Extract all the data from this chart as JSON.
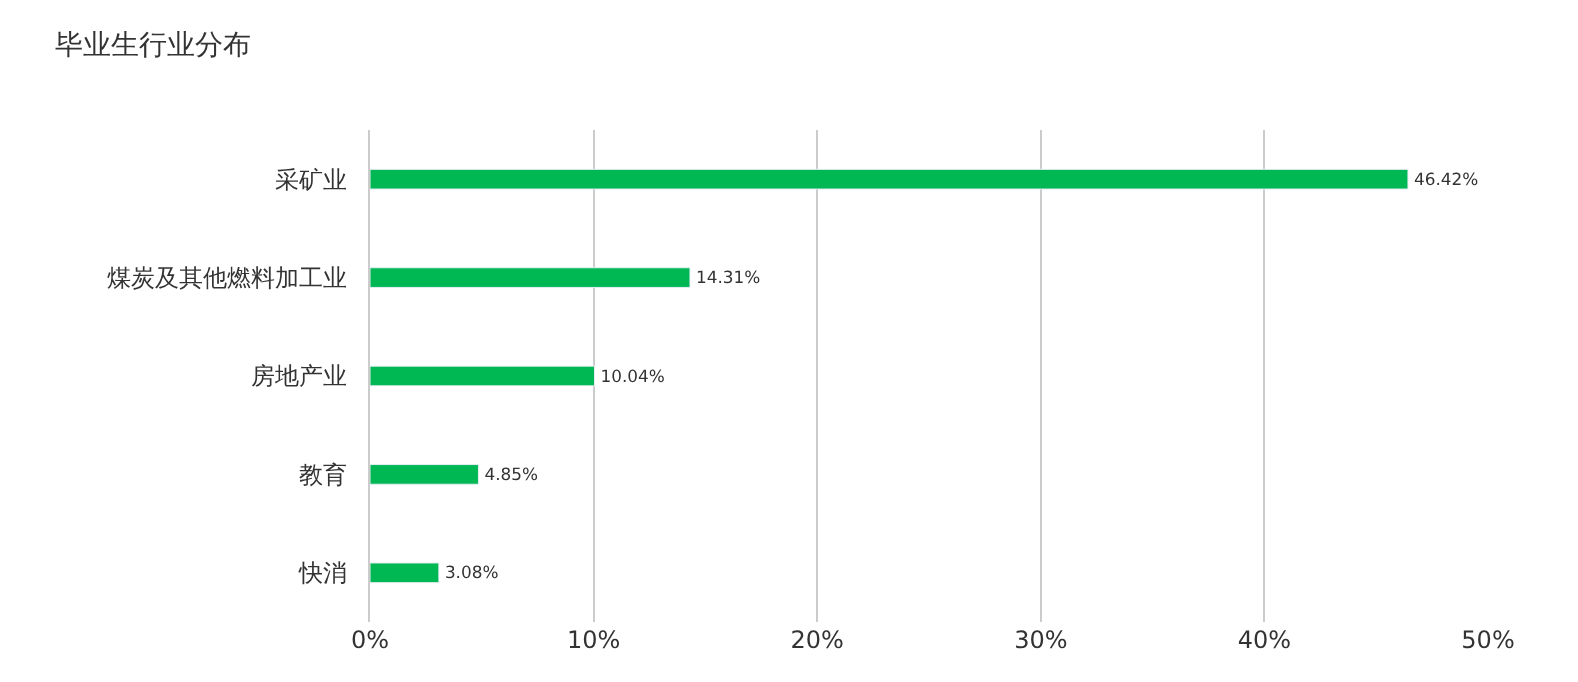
{
  "chart_data": {
    "type": "bar",
    "orientation": "horizontal",
    "title": "毕业生行业分布",
    "categories": [
      "采矿业",
      "煤炭及其他燃料加工业",
      "房地产业",
      "教育",
      "快消"
    ],
    "values": [
      46.42,
      14.31,
      10.04,
      4.85,
      3.08
    ],
    "value_labels": [
      "46.42%",
      "14.31%",
      "10.04%",
      "4.85%",
      "3.08%"
    ],
    "color": "#00b853",
    "xlim": [
      0,
      50
    ],
    "xticks": [
      {
        "value": 0,
        "label": "0%"
      },
      {
        "value": 10,
        "label": "10%"
      },
      {
        "value": 20,
        "label": "20%"
      },
      {
        "value": 30,
        "label": "30%"
      },
      {
        "value": 40,
        "label": "40%"
      },
      {
        "value": 50,
        "label": "50%"
      }
    ],
    "grid": "x"
  }
}
